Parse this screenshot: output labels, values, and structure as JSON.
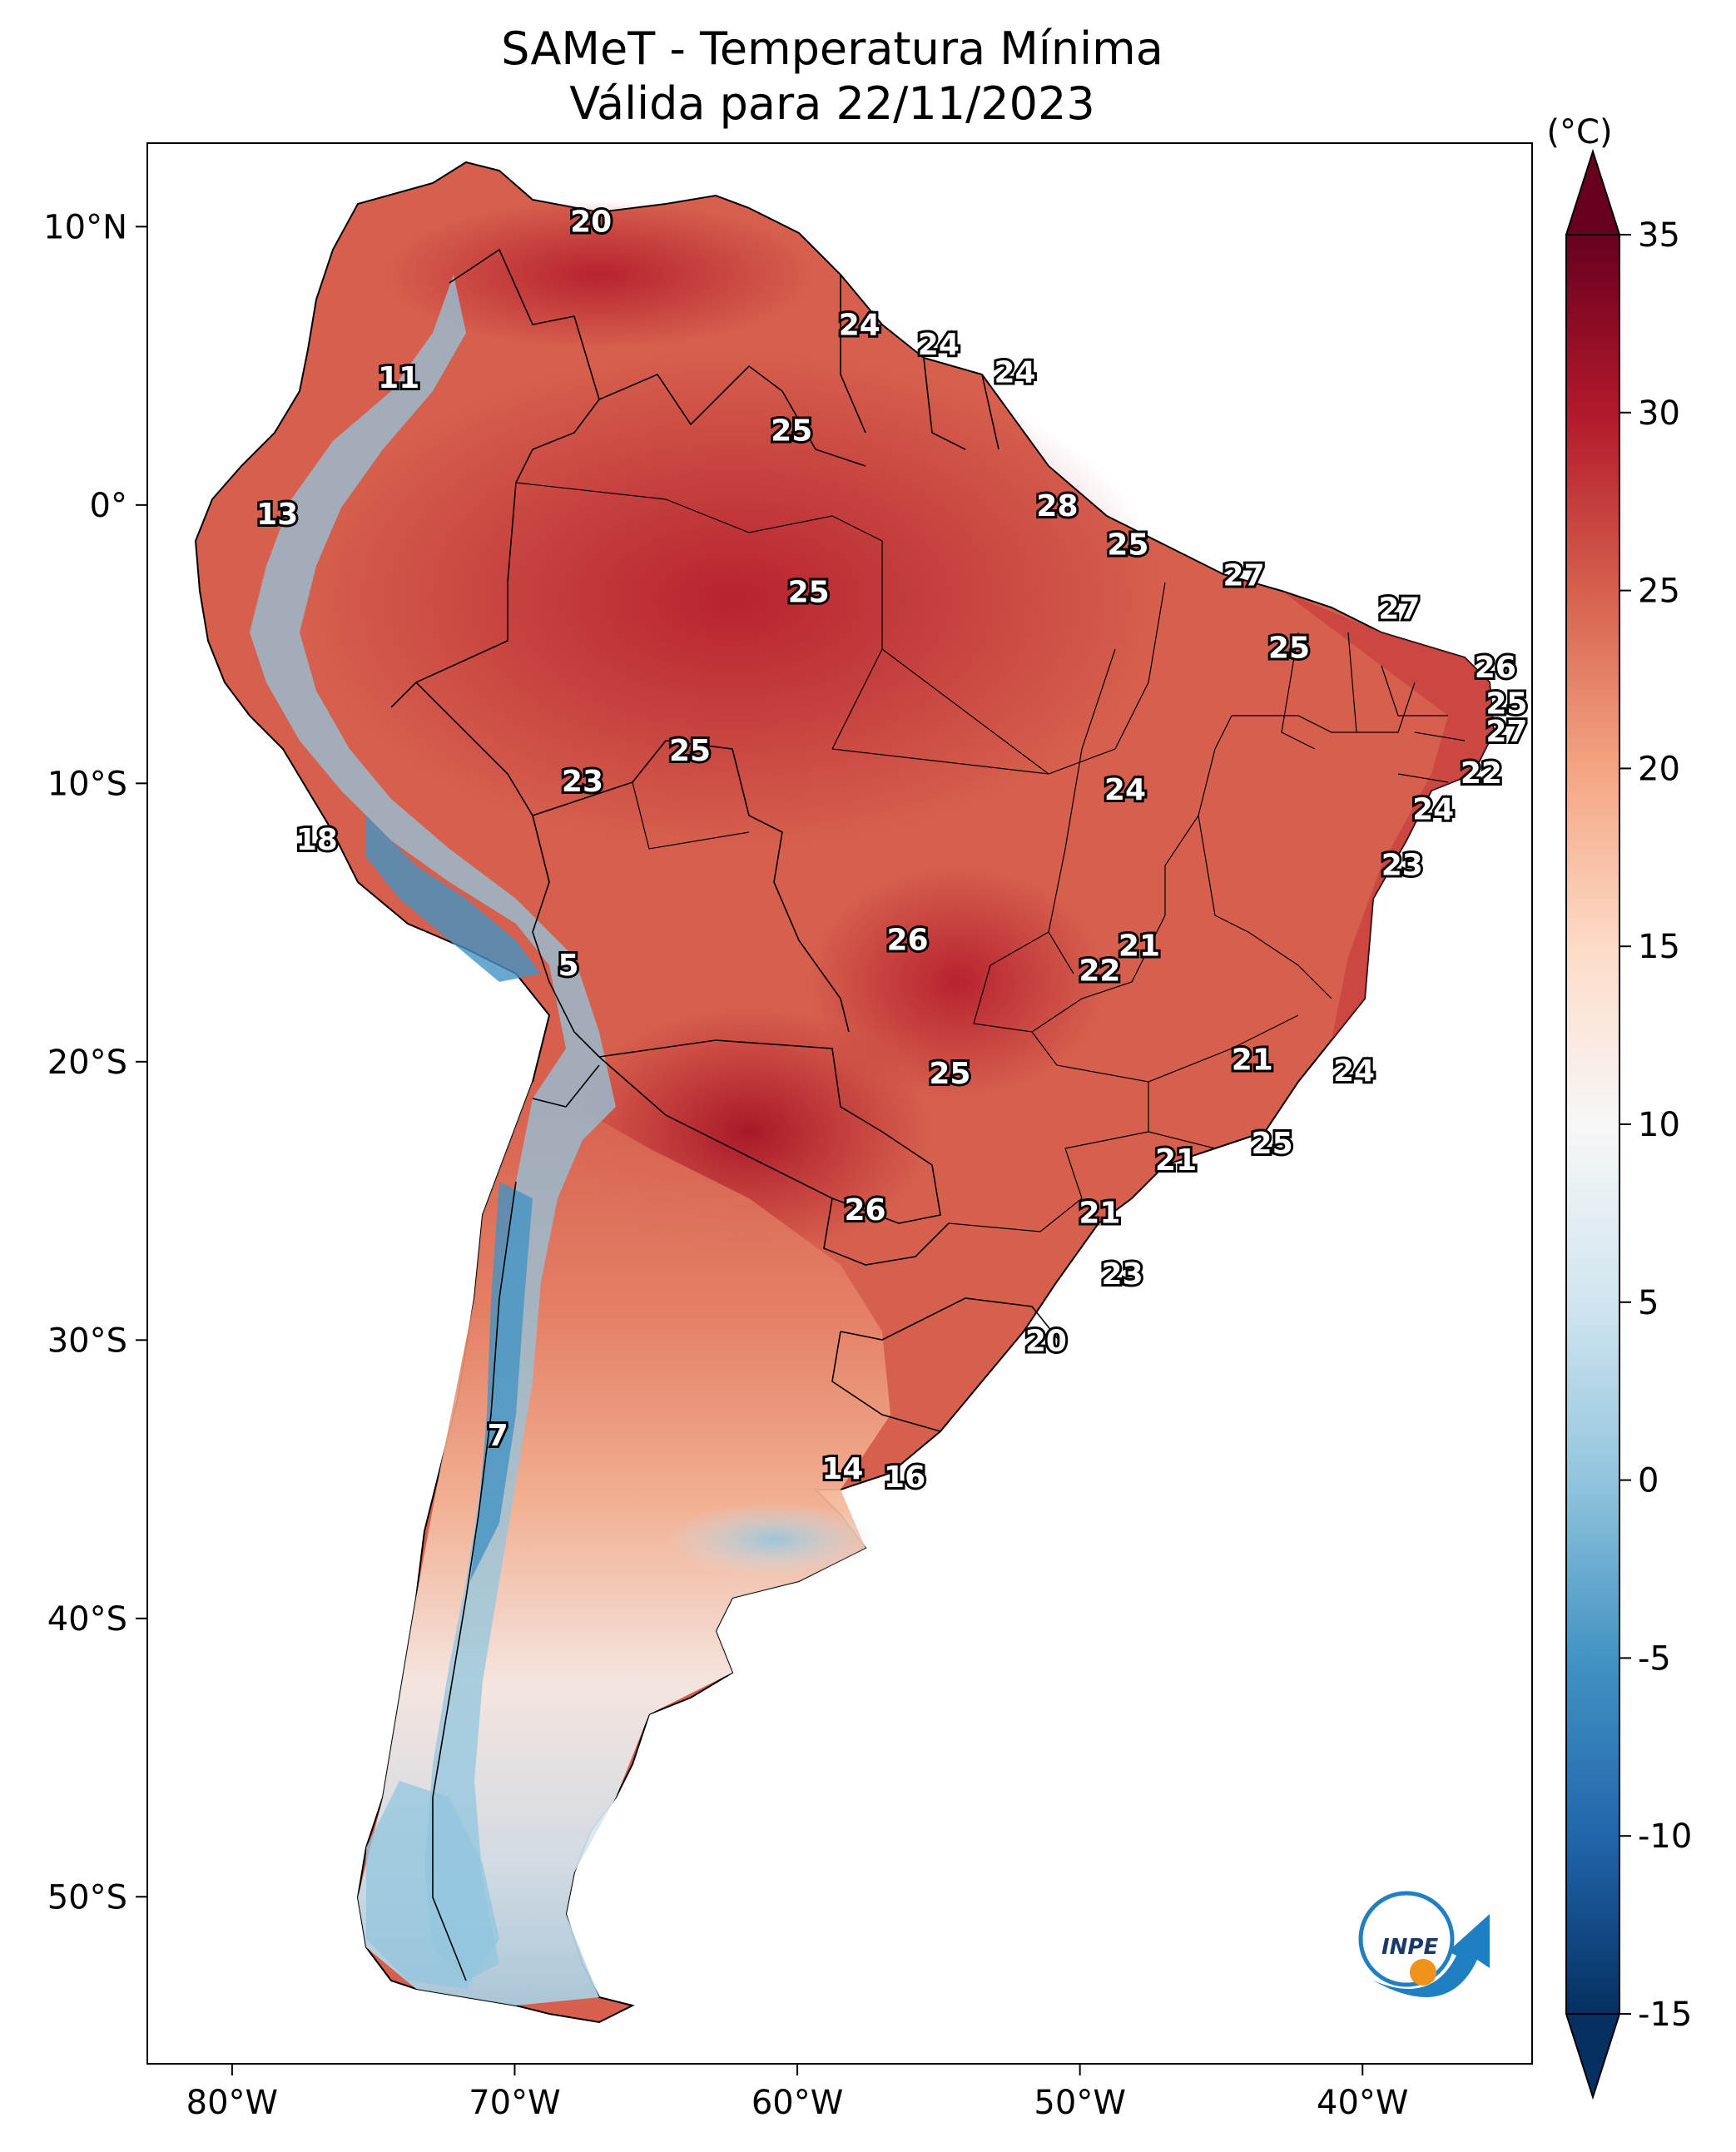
{
  "title": {
    "line1": "SAMeT - Temperatura Mínima",
    "line2": "Válida para 22/11/2023"
  },
  "axes": {
    "lon_ticks": [
      "80°W",
      "70°W",
      "60°W",
      "50°W",
      "40°W"
    ],
    "lat_ticks": [
      "10°N",
      "0°",
      "10°S",
      "20°S",
      "30°S",
      "40°S",
      "50°S"
    ],
    "lon_range": [
      -83,
      -34
    ],
    "lat_range": [
      -56,
      13
    ]
  },
  "colorbar": {
    "unit": "(°C)",
    "ticks": [
      "35",
      "30",
      "25",
      "20",
      "15",
      "10",
      "5",
      "0",
      "-5",
      "-10",
      "-15"
    ],
    "range": [
      -15,
      35
    ],
    "colormap": "RdBu_r"
  },
  "colors": {
    "hot": "#b2182b",
    "warm": "#d6604d",
    "mild": "#f4a582",
    "neutral": "#f7f7f7",
    "cool": "#92c5de",
    "cold": "#4393c3",
    "very_cold": "#2166ac"
  },
  "labels": [
    {
      "text": "20",
      "lon": -67.3,
      "lat": 10.2
    },
    {
      "text": "11",
      "lon": -74.1,
      "lat": 4.6
    },
    {
      "text": "24",
      "lon": -57.8,
      "lat": 6.5
    },
    {
      "text": "24",
      "lon": -55.0,
      "lat": 5.8
    },
    {
      "text": "24",
      "lon": -52.3,
      "lat": 4.8
    },
    {
      "text": "25",
      "lon": -60.2,
      "lat": 2.7
    },
    {
      "text": "13",
      "lon": -78.4,
      "lat": -0.3
    },
    {
      "text": "28",
      "lon": -50.8,
      "lat": 0.0
    },
    {
      "text": "25",
      "lon": -48.3,
      "lat": -1.4
    },
    {
      "text": "25",
      "lon": -59.6,
      "lat": -3.1
    },
    {
      "text": "27",
      "lon": -44.2,
      "lat": -2.5
    },
    {
      "text": "27",
      "lon": -38.7,
      "lat": -3.7
    },
    {
      "text": "25",
      "lon": -42.6,
      "lat": -5.1
    },
    {
      "text": "26",
      "lon": -35.3,
      "lat": -5.8
    },
    {
      "text": "25",
      "lon": -34.9,
      "lat": -7.1
    },
    {
      "text": "27",
      "lon": -34.9,
      "lat": -8.1
    },
    {
      "text": "25",
      "lon": -63.8,
      "lat": -8.8
    },
    {
      "text": "23",
      "lon": -67.6,
      "lat": -9.9
    },
    {
      "text": "24",
      "lon": -48.4,
      "lat": -10.2
    },
    {
      "text": "22",
      "lon": -35.8,
      "lat": -9.6
    },
    {
      "text": "24",
      "lon": -37.5,
      "lat": -10.9
    },
    {
      "text": "18",
      "lon": -77.0,
      "lat": -12.0
    },
    {
      "text": "23",
      "lon": -38.6,
      "lat": -12.9
    },
    {
      "text": "26",
      "lon": -56.1,
      "lat": -15.6
    },
    {
      "text": "21",
      "lon": -47.9,
      "lat": -15.8
    },
    {
      "text": "22",
      "lon": -49.3,
      "lat": -16.7
    },
    {
      "text": "5",
      "lon": -68.1,
      "lat": -16.5
    },
    {
      "text": "21",
      "lon": -43.9,
      "lat": -19.9
    },
    {
      "text": "24",
      "lon": -40.3,
      "lat": -20.3
    },
    {
      "text": "25",
      "lon": -54.6,
      "lat": -20.4
    },
    {
      "text": "25",
      "lon": -43.2,
      "lat": -22.9
    },
    {
      "text": "21",
      "lon": -46.6,
      "lat": -23.5
    },
    {
      "text": "26",
      "lon": -57.6,
      "lat": -25.3
    },
    {
      "text": "21",
      "lon": -49.3,
      "lat": -25.4
    },
    {
      "text": "23",
      "lon": -48.5,
      "lat": -27.6
    },
    {
      "text": "20",
      "lon": -51.2,
      "lat": -30.0
    },
    {
      "text": "7",
      "lon": -70.6,
      "lat": -33.4
    },
    {
      "text": "14",
      "lon": -58.4,
      "lat": -34.6
    },
    {
      "text": "16",
      "lon": -56.2,
      "lat": -34.9
    }
  ],
  "logo": {
    "text": "INPE"
  }
}
